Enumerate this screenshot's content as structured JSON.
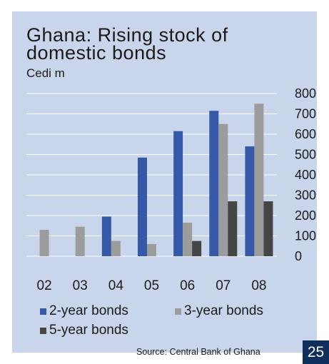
{
  "page_number": "25",
  "source": "Source: Central Bank of Ghana",
  "chart_data": {
    "type": "bar",
    "title": "Ghana: Rising stock of domestic bonds",
    "title_lines": [
      "Ghana: Rising stock of",
      "domestic bonds"
    ],
    "subtitle": "Cedi m",
    "categories": [
      "02",
      "03",
      "04",
      "05",
      "06",
      "07",
      "08"
    ],
    "series": [
      {
        "name": "2-year bonds",
        "color": "#3558a8",
        "values": [
          0,
          0,
          195,
          485,
          615,
          715,
          540
        ]
      },
      {
        "name": "3-year bonds",
        "color": "#9c9c9c",
        "values": [
          130,
          145,
          75,
          60,
          165,
          650,
          750
        ]
      },
      {
        "name": "5-year bonds",
        "color": "#454545",
        "values": [
          0,
          0,
          0,
          0,
          75,
          270,
          270
        ]
      }
    ],
    "ylim": [
      0,
      800
    ],
    "yticks": [
      0,
      100,
      200,
      300,
      400,
      500,
      600,
      700,
      800
    ],
    "y_axis_side": "right",
    "grid": true,
    "legend_position": "bottom"
  }
}
